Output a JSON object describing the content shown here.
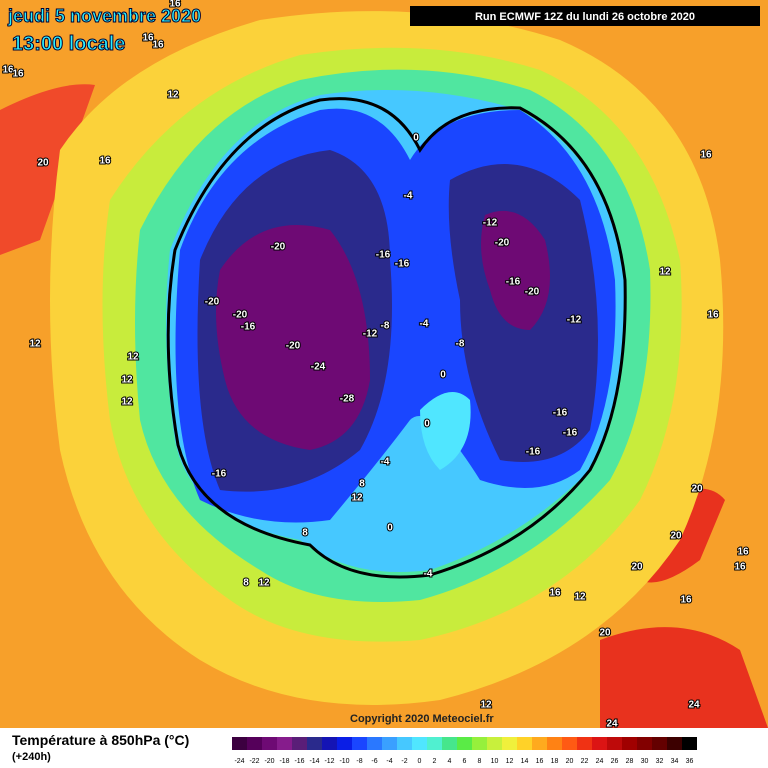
{
  "header": {
    "date": "jeudi 5 novembre 2020",
    "time": "13:00 locale",
    "run": "Run ECMWF 12Z du lundi 26 octobre 2020"
  },
  "footer": {
    "title": "Température à 850hPa (°C)",
    "lead": "(+240h)",
    "copyright": "Copyright 2020 Meteociel.fr"
  },
  "colorbar": {
    "ticks": [
      -24,
      -22,
      -20,
      -18,
      -16,
      -14,
      -12,
      -10,
      -8,
      -6,
      -4,
      -2,
      0,
      2,
      4,
      6,
      8,
      10,
      12,
      14,
      16,
      18,
      20,
      22,
      24,
      26,
      28,
      30,
      32,
      34,
      36
    ],
    "colors": [
      "#3c0040",
      "#55005a",
      "#6e0a74",
      "#861c8c",
      "#5a1e78",
      "#2a2a8c",
      "#1414b4",
      "#0a1ee6",
      "#1a46ff",
      "#2a78ff",
      "#3aa0ff",
      "#46c8ff",
      "#50e6ff",
      "#50f0d0",
      "#46e68c",
      "#5aeb46",
      "#96f03c",
      "#c8f03c",
      "#f0f03c",
      "#ffd228",
      "#ffaa1e",
      "#ff8214",
      "#ff5a14",
      "#f03214",
      "#dc1414",
      "#be0a0a",
      "#a00000",
      "#820000",
      "#640000",
      "#3c0000",
      "#000000"
    ]
  },
  "contour_labels": [
    16,
    16,
    16,
    16,
    16,
    12,
    20,
    16,
    0,
    16,
    -4,
    -12,
    -20,
    -20,
    -16,
    -16,
    12,
    -16,
    -20,
    -20,
    -20,
    -16,
    16,
    -12,
    -4,
    -8,
    -12,
    -8,
    12,
    12,
    -20,
    -24,
    0,
    12,
    12,
    -28,
    -16,
    -16,
    0,
    -16,
    -4,
    -16,
    8,
    12,
    20,
    0,
    8,
    20,
    16,
    20,
    16,
    8,
    12,
    -4,
    16,
    12,
    16,
    20,
    24,
    12,
    24
  ]
}
